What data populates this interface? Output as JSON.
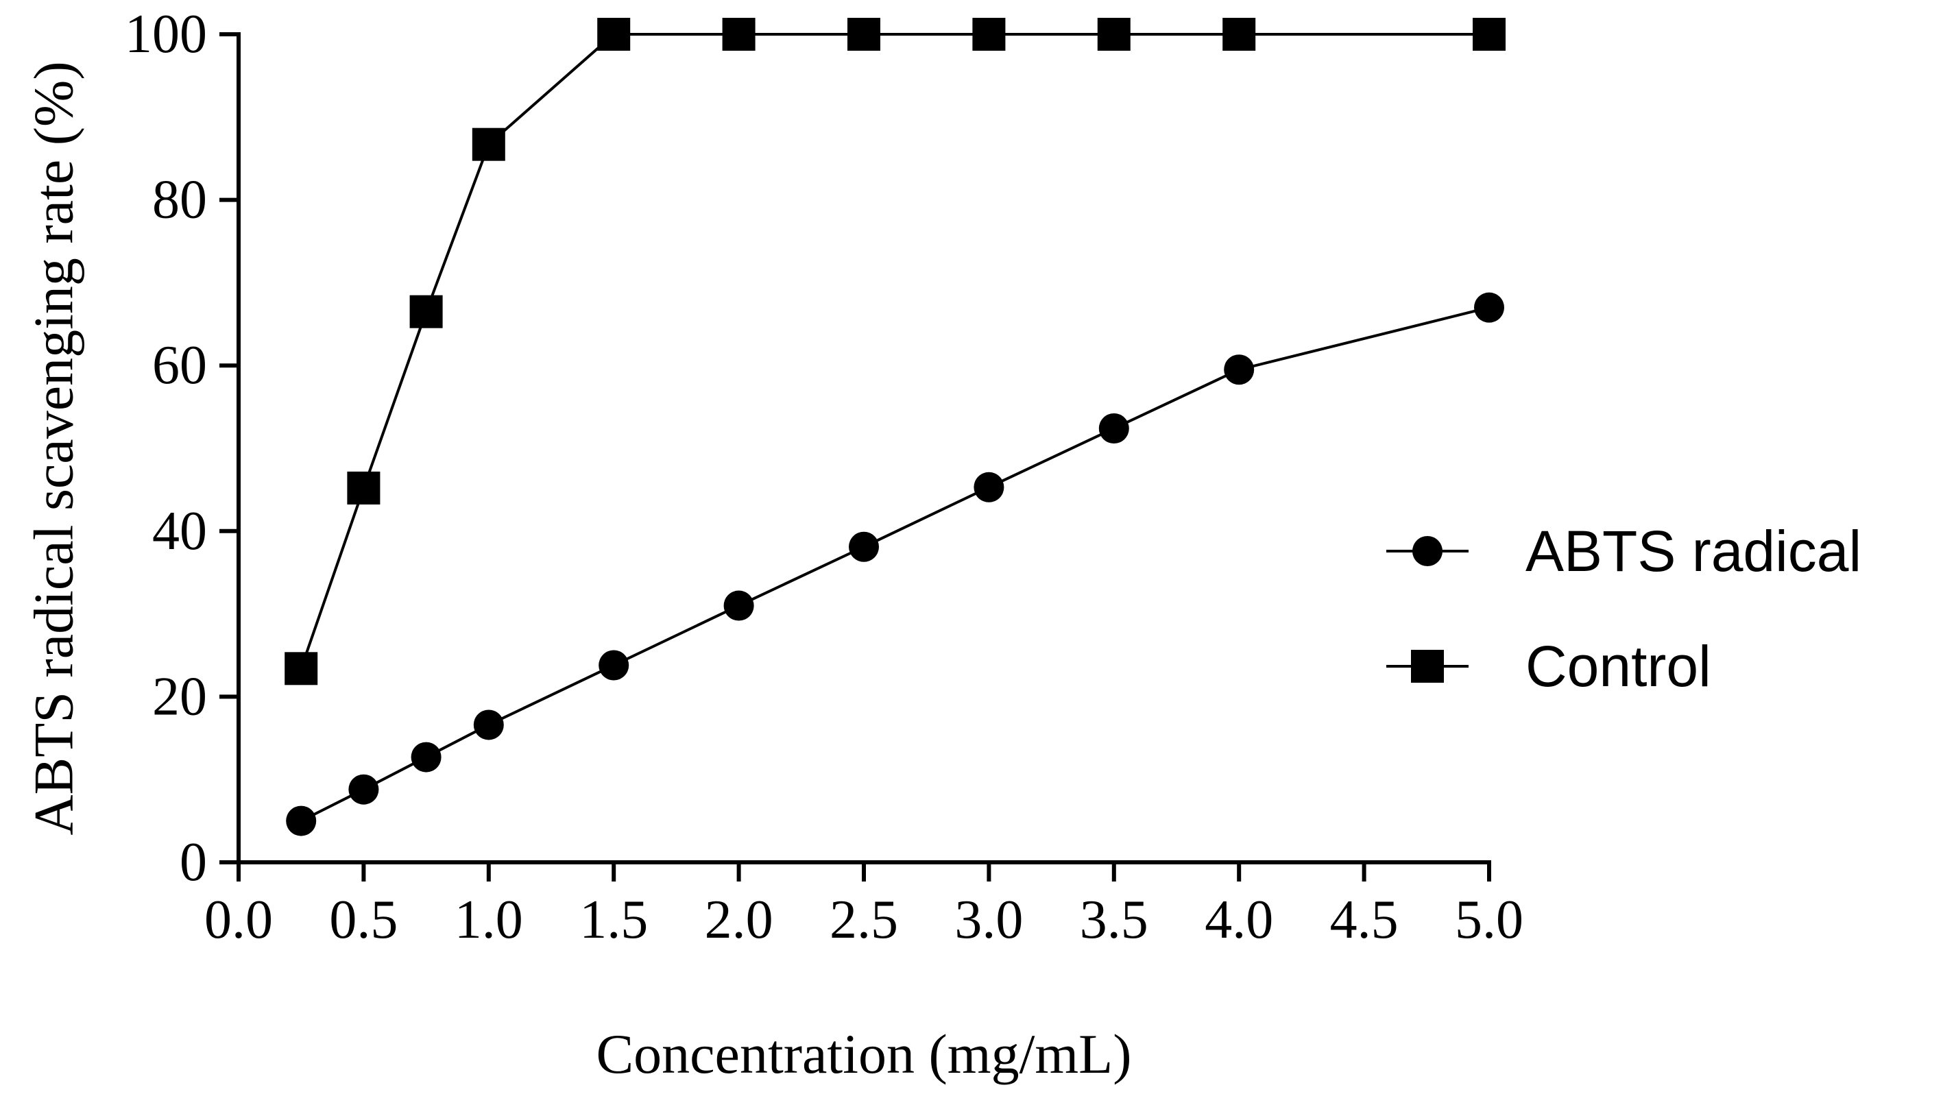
{
  "chart_data": {
    "type": "line",
    "title": "",
    "xlabel": "Concentration (mg/mL)",
    "ylabel": "ABTS  radical scavenging rate (%)",
    "xlim": [
      0.0,
      5.0
    ],
    "ylim": [
      0,
      100
    ],
    "xticks": [
      0.0,
      0.5,
      1.0,
      1.5,
      2.0,
      2.5,
      3.0,
      3.5,
      4.0,
      4.5,
      5.0
    ],
    "xtick_labels": [
      "0.0",
      "0.5",
      "1.0",
      "1.5",
      "2.0",
      "2.5",
      "3.0",
      "3.5",
      "4.0",
      "4.5",
      "5.0"
    ],
    "yticks": [
      0,
      20,
      40,
      60,
      80,
      100
    ],
    "ytick_labels": [
      "0",
      "20",
      "40",
      "60",
      "80",
      "100"
    ],
    "legend_position": "right",
    "grid": false,
    "series": [
      {
        "name": "ABTS  radical",
        "marker": "circle",
        "color": "#000000",
        "x": [
          0.25,
          0.5,
          0.75,
          1.0,
          1.5,
          2.0,
          2.5,
          3.0,
          3.5,
          4.0,
          5.0
        ],
        "values": [
          5.0,
          8.8,
          12.7,
          16.6,
          23.8,
          31.0,
          38.1,
          45.3,
          52.4,
          59.5,
          67.0
        ]
      },
      {
        "name": "Control",
        "marker": "square",
        "color": "#000000",
        "x": [
          0.25,
          0.5,
          0.75,
          1.0,
          1.5,
          2.0,
          2.5,
          3.0,
          3.5,
          4.0,
          5.0
        ],
        "values": [
          23.4,
          45.2,
          66.5,
          86.7,
          100,
          100,
          100,
          100,
          100,
          100,
          100
        ]
      }
    ]
  }
}
